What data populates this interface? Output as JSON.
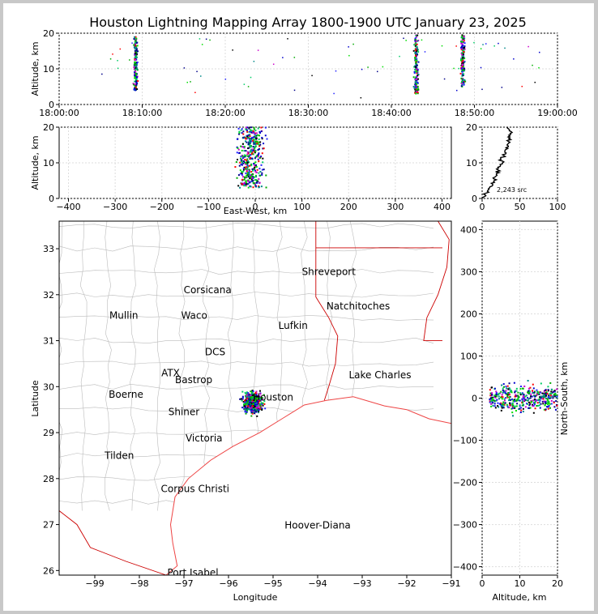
{
  "title": "Houston Lightning Mapping Array 1800-1900 UTC January 23, 2025",
  "colors": {
    "axis": "#000000",
    "grid": "#dddddd",
    "county": "#bbbbbb",
    "state": "#cc0000",
    "coast": "#ee4444",
    "city": "#000000",
    "city_orange": "#ff8c3c",
    "city_green": "#66cc33",
    "hoover": "#1010dd"
  },
  "chart_data": [
    {
      "id": "time_altitude",
      "type": "scatter",
      "ylabel": "Altitude, km",
      "ylim": [
        0,
        20
      ],
      "yticks": [
        "0",
        "10",
        "20"
      ],
      "xlim_minutes": [
        0,
        60
      ],
      "xticks": [
        "18:00:00",
        "18:10:00",
        "18:20:00",
        "18:30:00",
        "18:40:00",
        "18:50:00",
        "19:00:00"
      ],
      "clusters": [
        {
          "t_min": 9.2,
          "alt": [
            4,
            19
          ]
        },
        {
          "t_min": 43.0,
          "alt": [
            3,
            19.5
          ]
        },
        {
          "t_min": 48.6,
          "alt": [
            5,
            19.5
          ]
        }
      ]
    },
    {
      "id": "east_west_altitude",
      "type": "scatter",
      "xlabel": "East-West, km",
      "ylabel": "Altitude, km",
      "xlim": [
        -420,
        420
      ],
      "ylim": [
        0,
        20
      ],
      "xticks": [
        "−400",
        "−300",
        "−200",
        "−100",
        "0",
        "100",
        "200",
        "300",
        "400"
      ],
      "yticks": [
        "0",
        "10",
        "20"
      ],
      "cluster": {
        "x_range": [
          -80,
          60
        ],
        "alt_range": [
          3,
          20
        ]
      }
    },
    {
      "id": "altitude_histogram",
      "type": "line",
      "xlim": [
        0,
        100
      ],
      "ylim": [
        0,
        20
      ],
      "xticks": [
        "0",
        "50",
        "100"
      ],
      "yticks": [
        "0",
        "10",
        "20"
      ],
      "annotation": "2,243 src",
      "profile": [
        [
          1,
          0
        ],
        [
          4,
          1
        ],
        [
          7,
          2
        ],
        [
          10,
          3
        ],
        [
          14,
          4
        ],
        [
          16,
          5
        ],
        [
          17,
          6
        ],
        [
          19,
          7
        ],
        [
          21,
          8
        ],
        [
          24,
          9
        ],
        [
          27,
          10
        ],
        [
          25,
          11
        ],
        [
          29,
          12
        ],
        [
          30,
          13
        ],
        [
          34,
          14
        ],
        [
          33,
          15
        ],
        [
          35,
          16
        ],
        [
          37,
          17
        ],
        [
          38,
          18
        ],
        [
          36,
          19
        ],
        [
          33,
          20
        ]
      ]
    },
    {
      "id": "plan_view",
      "type": "scatter",
      "xlabel": "Longitude",
      "ylabel": "Latitude",
      "xlim": [
        -99.8,
        -91.0
      ],
      "ylim": [
        25.9,
        33.6
      ],
      "xticks": [
        "−99",
        "−98",
        "−97",
        "−96",
        "−95",
        "−94",
        "−93",
        "−92",
        "−91"
      ],
      "yticks": [
        "26",
        "27",
        "28",
        "29",
        "30",
        "31",
        "32",
        "33"
      ],
      "cluster": {
        "lon_range": [
          -95.9,
          -95.0
        ],
        "lat_range": [
          29.3,
          30.1
        ]
      }
    },
    {
      "id": "north_south_altitude",
      "type": "scatter",
      "xlabel": "Altitude, km",
      "ylabel": "North-South, km",
      "xlim": [
        0,
        20
      ],
      "ylim": [
        -420,
        420
      ],
      "xticks": [
        "0",
        "10",
        "20"
      ],
      "yticks": [
        "−400",
        "−300",
        "−200",
        "−100",
        "0",
        "100",
        "200",
        "300",
        "400"
      ],
      "cluster": {
        "ns_range": [
          -80,
          100
        ],
        "alt_range": [
          2,
          20
        ]
      }
    }
  ],
  "cities": [
    {
      "name": "Shreveport",
      "lon": -93.75,
      "lat": 32.5,
      "color": "#000000"
    },
    {
      "name": "Corsicana",
      "lon": -96.47,
      "lat": 32.1,
      "color": "#000000"
    },
    {
      "name": "Natchitoches",
      "lon": -93.09,
      "lat": 31.75,
      "color": "#000000"
    },
    {
      "name": "Mullin",
      "lon": -98.35,
      "lat": 31.55,
      "color": "#ff8c3c"
    },
    {
      "name": "Waco",
      "lon": -96.77,
      "lat": 31.55,
      "color": "#000000"
    },
    {
      "name": "Lufkin",
      "lon": -94.55,
      "lat": 31.33,
      "color": "#000000"
    },
    {
      "name": "DCS",
      "lon": -96.3,
      "lat": 30.75,
      "color": "#000000"
    },
    {
      "name": "ATX",
      "lon": -97.3,
      "lat": 30.3,
      "color": "#ff8c3c"
    },
    {
      "name": "Bastrop",
      "lon": -96.78,
      "lat": 30.15,
      "color": "#000000"
    },
    {
      "name": "Lake Charles",
      "lon": -92.6,
      "lat": 30.25,
      "color": "#000000"
    },
    {
      "name": "Boerne",
      "lon": -98.3,
      "lat": 29.83,
      "color": "#000000"
    },
    {
      "name": "Houston",
      "lon": -95.0,
      "lat": 29.77,
      "color": "#ff8c3c"
    },
    {
      "name": "Shiner",
      "lon": -97.0,
      "lat": 29.45,
      "color": "#000000"
    },
    {
      "name": "Victoria",
      "lon": -96.55,
      "lat": 28.88,
      "color": "#000000"
    },
    {
      "name": "Tilden",
      "lon": -98.45,
      "lat": 28.5,
      "color": "#000000"
    },
    {
      "name": "Corpus Christi",
      "lon": -96.75,
      "lat": 27.78,
      "color": "#000000"
    },
    {
      "name": "Hoover-Diana",
      "lon": -94.0,
      "lat": 26.98,
      "color": "#1010dd"
    },
    {
      "name": "Port Isabel",
      "lon": -96.8,
      "lat": 25.95,
      "color": "#000000"
    }
  ]
}
